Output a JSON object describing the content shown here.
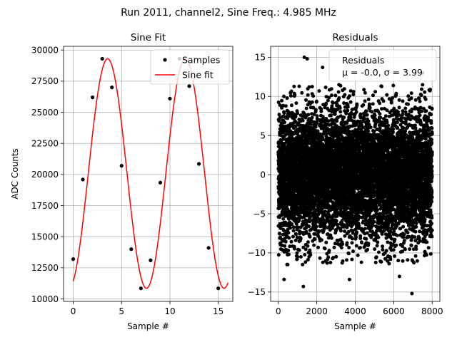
{
  "figure": {
    "suptitle": "Run 2011, channel2, Sine Freq.: 4.985 MHz"
  },
  "chart_data": [
    {
      "type": "line",
      "title": "Sine Fit",
      "xlabel": "Sample #",
      "ylabel": "ADC Counts",
      "xlim": [
        -1.0,
        16.5
      ],
      "ylim": [
        9800,
        30300
      ],
      "xticks": [
        0,
        5,
        10,
        15
      ],
      "yticks": [
        10000,
        12500,
        15000,
        17500,
        20000,
        22500,
        25000,
        27500,
        30000
      ],
      "grid": true,
      "legend": {
        "placement": "top-right",
        "entries": [
          "Samples",
          "Sine fit"
        ]
      },
      "series": [
        {
          "name": "Samples",
          "kind": "scatter",
          "color": "#000000",
          "x": [
            0,
            1,
            2,
            3,
            4,
            5,
            6,
            7,
            8,
            9,
            10,
            11,
            12,
            13,
            14,
            15
          ],
          "y": [
            13200,
            19600,
            26200,
            29300,
            27000,
            20700,
            14000,
            10850,
            13100,
            19350,
            26100,
            29300,
            27100,
            20850,
            14100,
            10850
          ]
        },
        {
          "name": "Sine fit",
          "kind": "line",
          "color": "#ff0000",
          "model": {
            "offset": 20075,
            "amplitude": 9225,
            "frequency": 0.1246,
            "phase": -1.2155
          },
          "x_range": [
            0,
            16
          ]
        }
      ]
    },
    {
      "type": "scatter",
      "title": "Residuals",
      "xlabel": "Sample #",
      "ylabel": "",
      "xlim": [
        -400,
        8400
      ],
      "ylim": [
        -16.2,
        16.4
      ],
      "xticks": [
        0,
        2000,
        4000,
        6000,
        8000
      ],
      "yticks": [
        -15,
        -10,
        -5,
        0,
        5,
        10,
        15
      ],
      "grid": true,
      "legend": {
        "placement": "top-right",
        "entries": [
          "Residuals",
          "μ = -0.0, σ = 3.99"
        ]
      },
      "series": [
        {
          "name": "Residuals",
          "color": "#000000",
          "count": 8000,
          "x_range": [
            0,
            8000
          ],
          "mean": 0.0,
          "std": 3.99,
          "notable_points": [
            {
              "x": 1300,
              "y": -14.3
            },
            {
              "x": 1350,
              "y": 15.0
            },
            {
              "x": 2300,
              "y": 13.7
            },
            {
              "x": 3700,
              "y": -13.4
            },
            {
              "x": 6950,
              "y": -15.2
            },
            {
              "x": 300,
              "y": -13.4
            },
            {
              "x": 6300,
              "y": -13.0
            },
            {
              "x": 7500,
              "y": 13.0
            },
            {
              "x": 1500,
              "y": 14.8
            }
          ]
        }
      ]
    }
  ]
}
